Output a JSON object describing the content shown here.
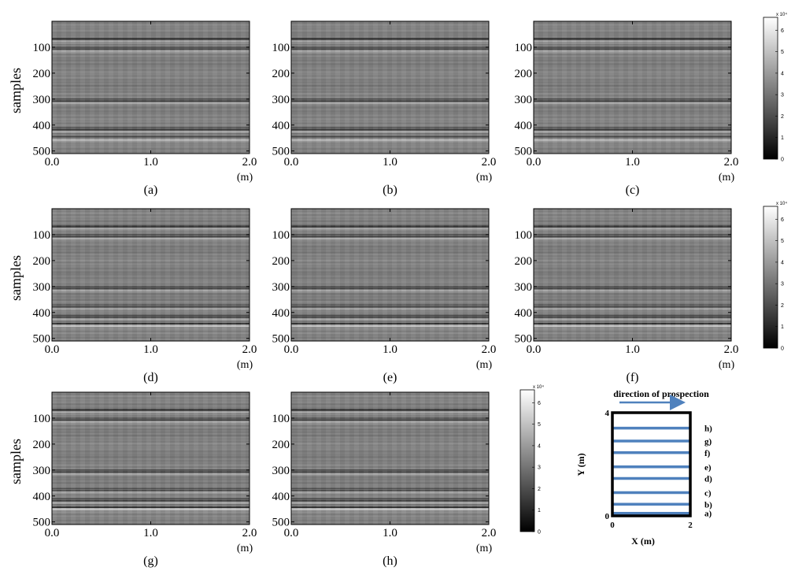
{
  "chart_data": {
    "type": "heatmap",
    "ylabel": "samples",
    "x_unit": "(m)",
    "x_ticks": [
      "0.0",
      "1.0",
      "2.0"
    ],
    "x_range": [
      0.0,
      2.0
    ],
    "y_ticks": [
      "100",
      "200",
      "300",
      "400",
      "500"
    ],
    "y_range": [
      0,
      510
    ],
    "colormap": "gray",
    "panels": [
      {
        "label": "(a)",
        "strong_reflector_depths": [
          75,
          110,
          310,
          420,
          455
        ],
        "bright_band_depth": 455
      },
      {
        "label": "(b)",
        "strong_reflector_depths": [
          75,
          110,
          310,
          420,
          455
        ],
        "bright_band_depth": 455
      },
      {
        "label": "(c)",
        "strong_reflector_depths": [
          75,
          110,
          310,
          420,
          455
        ],
        "bright_band_depth": 455
      },
      {
        "label": "(d)",
        "strong_reflector_depths": [
          75,
          110,
          310,
          380,
          420,
          450
        ],
        "bright_band_depth": 450
      },
      {
        "label": "(e)",
        "strong_reflector_depths": [
          75,
          110,
          310,
          380,
          420,
          450
        ],
        "bright_band_depth": 450
      },
      {
        "label": "(f)",
        "strong_reflector_depths": [
          75,
          110,
          310,
          380,
          420,
          450
        ],
        "bright_band_depth": 450
      },
      {
        "label": "(g)",
        "strong_reflector_depths": [
          75,
          110,
          310,
          380,
          420,
          450
        ],
        "bright_band_depth": 450
      },
      {
        "label": "(h)",
        "strong_reflector_depths": [
          75,
          110,
          310,
          380,
          420,
          450
        ],
        "bright_band_depth": 450
      }
    ],
    "colorbar": {
      "exponent": "x 10⁴",
      "ticks": [
        "0",
        "1",
        "2",
        "3",
        "4",
        "5",
        "6"
      ],
      "range": [
        0,
        6.6
      ]
    }
  },
  "inset": {
    "title": "direction of prospection",
    "xlabel": "X (m)",
    "ylabel": "Y (m)",
    "x_ticks": [
      "0",
      "2"
    ],
    "y_ticks": [
      "0",
      "4"
    ],
    "x_range": [
      0,
      2
    ],
    "y_range": [
      0,
      4
    ],
    "line_color": "#4f81bd",
    "border_color": "#000000",
    "profiles": [
      {
        "label": "a)",
        "y": 0.1
      },
      {
        "label": "b)",
        "y": 0.45
      },
      {
        "label": "c)",
        "y": 0.9
      },
      {
        "label": "d)",
        "y": 1.45
      },
      {
        "label": "e)",
        "y": 1.9
      },
      {
        "label": "f)",
        "y": 2.45
      },
      {
        "label": "g)",
        "y": 2.9
      },
      {
        "label": "h)",
        "y": 3.4
      }
    ]
  }
}
